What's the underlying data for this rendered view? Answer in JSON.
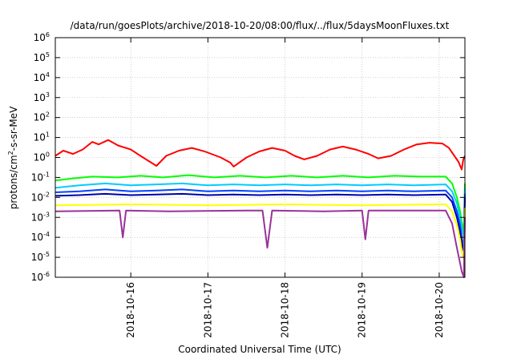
{
  "chart_data": {
    "type": "line",
    "title": "/data/run/goesPlots/archive/2018-10-20/08:00/flux/../flux/5daysMoonFluxes.txt",
    "xlabel": "Coordinated Universal Time (UTC)",
    "ylabel": {
      "base": "protons/cm",
      "sup": "2",
      "rest": "-s-sr-MeV"
    },
    "y_scale": "log",
    "ylim": [
      1e-06,
      1000000.0
    ],
    "y_ticks": [
      {
        "value": 1e-06,
        "exp": "-6"
      },
      {
        "value": 1e-05,
        "exp": "-5"
      },
      {
        "value": 0.0001,
        "exp": "-4"
      },
      {
        "value": 0.001,
        "exp": "-3"
      },
      {
        "value": 0.01,
        "exp": "-2"
      },
      {
        "value": 0.1,
        "exp": "-1"
      },
      {
        "value": 1,
        "exp": "0"
      },
      {
        "value": 10,
        "exp": "1"
      },
      {
        "value": 100,
        "exp": "2"
      },
      {
        "value": 1000,
        "exp": "3"
      },
      {
        "value": 10000,
        "exp": "4"
      },
      {
        "value": 100000,
        "exp": "5"
      },
      {
        "value": 1000000,
        "exp": "6"
      }
    ],
    "xlim": [
      "2018-10-15T00:30",
      "2018-10-20T08:00"
    ],
    "x_ticks": [
      "2018-10-16",
      "2018-10-17",
      "2018-10-18",
      "2018-10-19",
      "2018-10-20"
    ],
    "grid": true,
    "series": [
      {
        "color": "#ff0000",
        "points": [
          [
            "2018-10-15T00:30",
            1.2
          ],
          [
            "2018-10-15T03:00",
            2.2
          ],
          [
            "2018-10-15T06:00",
            1.5
          ],
          [
            "2018-10-15T09:00",
            2.5
          ],
          [
            "2018-10-15T12:00",
            6.0
          ],
          [
            "2018-10-15T14:00",
            4.5
          ],
          [
            "2018-10-15T17:00",
            7.5
          ],
          [
            "2018-10-15T20:00",
            4.0
          ],
          [
            "2018-10-16T00:00",
            2.5
          ],
          [
            "2018-10-16T03:00",
            1.2
          ],
          [
            "2018-10-16T06:00",
            0.6
          ],
          [
            "2018-10-16T08:00",
            0.38
          ],
          [
            "2018-10-16T11:00",
            1.2
          ],
          [
            "2018-10-16T15:00",
            2.2
          ],
          [
            "2018-10-16T19:00",
            3.0
          ],
          [
            "2018-10-16T23:00",
            2.0
          ],
          [
            "2018-10-17T04:00",
            1.0
          ],
          [
            "2018-10-17T07:00",
            0.55
          ],
          [
            "2018-10-17T08:00",
            0.35
          ],
          [
            "2018-10-17T12:00",
            1.0
          ],
          [
            "2018-10-17T16:00",
            2.0
          ],
          [
            "2018-10-17T20:00",
            3.0
          ],
          [
            "2018-10-18T00:00",
            2.2
          ],
          [
            "2018-10-18T03:00",
            1.2
          ],
          [
            "2018-10-18T06:00",
            0.8
          ],
          [
            "2018-10-18T10:00",
            1.2
          ],
          [
            "2018-10-18T14:00",
            2.5
          ],
          [
            "2018-10-18T18:00",
            3.5
          ],
          [
            "2018-10-18T22:00",
            2.5
          ],
          [
            "2018-10-19T02:00",
            1.5
          ],
          [
            "2018-10-19T05:00",
            0.9
          ],
          [
            "2018-10-19T09:00",
            1.2
          ],
          [
            "2018-10-19T13:00",
            2.5
          ],
          [
            "2018-10-19T17:00",
            4.5
          ],
          [
            "2018-10-19T21:00",
            5.5
          ],
          [
            "2018-10-20T01:00",
            5.0
          ],
          [
            "2018-10-20T03:00",
            3.0
          ],
          [
            "2018-10-20T06:00",
            0.6
          ],
          [
            "2018-10-20T07:00",
            0.25
          ],
          [
            "2018-10-20T07:30",
            0.8
          ],
          [
            "2018-10-20T08:00",
            1.2
          ]
        ]
      },
      {
        "color": "#00ff00",
        "points": [
          [
            "2018-10-15T00:30",
            0.07
          ],
          [
            "2018-10-15T06:00",
            0.09
          ],
          [
            "2018-10-15T12:00",
            0.11
          ],
          [
            "2018-10-15T20:00",
            0.1
          ],
          [
            "2018-10-16T03:00",
            0.12
          ],
          [
            "2018-10-16T10:00",
            0.1
          ],
          [
            "2018-10-16T18:00",
            0.13
          ],
          [
            "2018-10-17T02:00",
            0.1
          ],
          [
            "2018-10-17T10:00",
            0.12
          ],
          [
            "2018-10-17T18:00",
            0.1
          ],
          [
            "2018-10-18T02:00",
            0.12
          ],
          [
            "2018-10-18T10:00",
            0.1
          ],
          [
            "2018-10-18T18:00",
            0.12
          ],
          [
            "2018-10-19T02:00",
            0.1
          ],
          [
            "2018-10-19T10:00",
            0.12
          ],
          [
            "2018-10-19T18:00",
            0.11
          ],
          [
            "2018-10-20T02:00",
            0.11
          ],
          [
            "2018-10-20T04:00",
            0.05
          ],
          [
            "2018-10-20T05:30",
            0.01
          ],
          [
            "2018-10-20T06:30",
            0.002
          ],
          [
            "2018-10-20T07:00",
            0.0006
          ],
          [
            "2018-10-20T07:40",
            0.0002
          ],
          [
            "2018-10-20T08:00",
            0.05
          ]
        ]
      },
      {
        "color": "#00ccff",
        "points": [
          [
            "2018-10-15T00:30",
            0.03
          ],
          [
            "2018-10-15T08:00",
            0.04
          ],
          [
            "2018-10-15T16:00",
            0.05
          ],
          [
            "2018-10-16T00:00",
            0.04
          ],
          [
            "2018-10-16T08:00",
            0.045
          ],
          [
            "2018-10-16T16:00",
            0.05
          ],
          [
            "2018-10-17T00:00",
            0.04
          ],
          [
            "2018-10-17T08:00",
            0.045
          ],
          [
            "2018-10-17T16:00",
            0.04
          ],
          [
            "2018-10-18T00:00",
            0.045
          ],
          [
            "2018-10-18T08:00",
            0.04
          ],
          [
            "2018-10-18T16:00",
            0.045
          ],
          [
            "2018-10-19T00:00",
            0.04
          ],
          [
            "2018-10-19T08:00",
            0.045
          ],
          [
            "2018-10-19T16:00",
            0.04
          ],
          [
            "2018-10-20T02:00",
            0.045
          ],
          [
            "2018-10-20T04:00",
            0.02
          ],
          [
            "2018-10-20T05:30",
            0.005
          ],
          [
            "2018-10-20T06:30",
            0.001
          ],
          [
            "2018-10-20T07:00",
            0.0003
          ],
          [
            "2018-10-20T07:40",
            0.0001
          ],
          [
            "2018-10-20T08:00",
            0.03
          ]
        ]
      },
      {
        "color": "#0044ff",
        "points": [
          [
            "2018-10-15T00:30",
            0.018
          ],
          [
            "2018-10-15T08:00",
            0.02
          ],
          [
            "2018-10-15T16:00",
            0.025
          ],
          [
            "2018-10-16T00:00",
            0.02
          ],
          [
            "2018-10-16T08:00",
            0.022
          ],
          [
            "2018-10-16T16:00",
            0.025
          ],
          [
            "2018-10-17T00:00",
            0.02
          ],
          [
            "2018-10-17T08:00",
            0.022
          ],
          [
            "2018-10-17T16:00",
            0.02
          ],
          [
            "2018-10-18T00:00",
            0.022
          ],
          [
            "2018-10-18T08:00",
            0.02
          ],
          [
            "2018-10-18T16:00",
            0.022
          ],
          [
            "2018-10-19T00:00",
            0.02
          ],
          [
            "2018-10-19T08:00",
            0.022
          ],
          [
            "2018-10-19T16:00",
            0.02
          ],
          [
            "2018-10-20T02:00",
            0.022
          ],
          [
            "2018-10-20T04:00",
            0.01
          ],
          [
            "2018-10-20T05:30",
            0.002
          ],
          [
            "2018-10-20T06:30",
            0.0004
          ],
          [
            "2018-10-20T07:00",
            0.0001
          ],
          [
            "2018-10-20T07:40",
            3e-05
          ],
          [
            "2018-10-20T08:00",
            0.015
          ]
        ]
      },
      {
        "color": "#0000aa",
        "points": [
          [
            "2018-10-15T00:30",
            0.012
          ],
          [
            "2018-10-15T08:00",
            0.013
          ],
          [
            "2018-10-15T16:00",
            0.015
          ],
          [
            "2018-10-16T00:00",
            0.013
          ],
          [
            "2018-10-16T08:00",
            0.014
          ],
          [
            "2018-10-16T16:00",
            0.015
          ],
          [
            "2018-10-17T00:00",
            0.013
          ],
          [
            "2018-10-17T08:00",
            0.014
          ],
          [
            "2018-10-17T16:00",
            0.013
          ],
          [
            "2018-10-18T00:00",
            0.014
          ],
          [
            "2018-10-18T08:00",
            0.013
          ],
          [
            "2018-10-18T16:00",
            0.014
          ],
          [
            "2018-10-19T00:00",
            0.013
          ],
          [
            "2018-10-19T08:00",
            0.014
          ],
          [
            "2018-10-19T16:00",
            0.013
          ],
          [
            "2018-10-20T02:00",
            0.014
          ],
          [
            "2018-10-20T04:00",
            0.006
          ],
          [
            "2018-10-20T05:30",
            0.001
          ],
          [
            "2018-10-20T06:30",
            0.0002
          ],
          [
            "2018-10-20T07:00",
            5e-05
          ],
          [
            "2018-10-20T07:40",
            2e-05
          ],
          [
            "2018-10-20T08:00",
            0.01
          ]
        ]
      },
      {
        "color": "#ffff00",
        "points": [
          [
            "2018-10-15T00:30",
            0.004
          ],
          [
            "2018-10-16T00:00",
            0.0045
          ],
          [
            "2018-10-17T00:00",
            0.004
          ],
          [
            "2018-10-18T00:00",
            0.0045
          ],
          [
            "2018-10-19T00:00",
            0.004
          ],
          [
            "2018-10-20T02:00",
            0.0045
          ],
          [
            "2018-10-20T04:00",
            0.002
          ],
          [
            "2018-10-20T05:30",
            0.0004
          ],
          [
            "2018-10-20T06:30",
            8e-05
          ],
          [
            "2018-10-20T07:00",
            2e-05
          ],
          [
            "2018-10-20T07:40",
            8e-06
          ],
          [
            "2018-10-20T08:00",
            0.003
          ]
        ]
      },
      {
        "color": "#993399",
        "points": [
          [
            "2018-10-15T00:30",
            0.002
          ],
          [
            "2018-10-15T20:30",
            0.0022
          ],
          [
            "2018-10-15T21:30",
            0.0001
          ],
          [
            "2018-10-15T22:30",
            0.0022
          ],
          [
            "2018-10-16T12:00",
            0.002
          ],
          [
            "2018-10-17T12:00",
            0.0022
          ],
          [
            "2018-10-17T17:00",
            0.0022
          ],
          [
            "2018-10-17T18:30",
            3e-05
          ],
          [
            "2018-10-17T20:00",
            0.0022
          ],
          [
            "2018-10-18T12:00",
            0.002
          ],
          [
            "2018-10-19T00:00",
            0.0022
          ],
          [
            "2018-10-19T01:00",
            8e-05
          ],
          [
            "2018-10-19T02:00",
            0.0022
          ],
          [
            "2018-10-20T02:00",
            0.0022
          ],
          [
            "2018-10-20T04:00",
            0.0005
          ],
          [
            "2018-10-20T05:30",
            3e-05
          ],
          [
            "2018-10-20T06:30",
            5e-06
          ],
          [
            "2018-10-20T07:00",
            2e-06
          ],
          [
            "2018-10-20T07:40",
            1e-06
          ],
          [
            "2018-10-20T08:00",
            0.001
          ]
        ]
      }
    ]
  }
}
